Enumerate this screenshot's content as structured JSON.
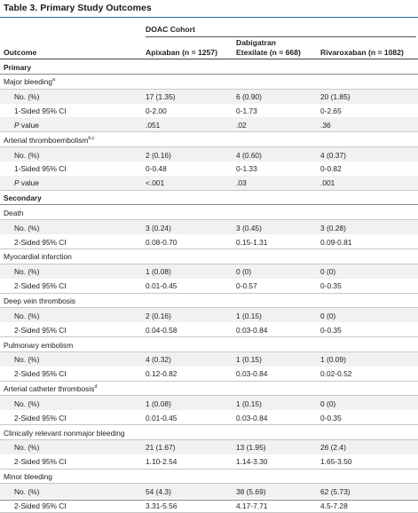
{
  "table": {
    "title": "Table 3. Primary Study Outcomes",
    "group_header": "DOAC Cohort",
    "headers": {
      "outcome": "Outcome",
      "apixaban": "Apixaban (n = 1257)",
      "dabigatran_line1": "Dabigatran",
      "dabigatran_line2": "Etexilate (n = 668)",
      "rivaroxaban": "Rivaroxaban (n = 1082)"
    },
    "rows": [
      {
        "type": "section",
        "label": "Primary"
      },
      {
        "type": "outcome",
        "label": "Major bleeding",
        "sup": "a"
      },
      {
        "type": "stat",
        "label": "No. (%)",
        "apixaban": "17 (1.35)",
        "dabigatran": "6 (0.90)",
        "rivaroxaban": "20 (1.85)"
      },
      {
        "type": "stat",
        "label": "1-Sided 95% CI",
        "apixaban": "0-2.00",
        "dabigatran": "0-1.73",
        "rivaroxaban": "0-2.65"
      },
      {
        "type": "stat",
        "label": "P value",
        "italic_p": true,
        "apixaban": ".051",
        "dabigatran": ".02",
        "rivaroxaban": ".36"
      },
      {
        "type": "outcome",
        "label": "Arterial thromboembolism",
        "sup": "b,c"
      },
      {
        "type": "stat",
        "label": "No. (%)",
        "apixaban": "2 (0.16)",
        "dabigatran": "4 (0.60)",
        "rivaroxaban": "4 (0.37)"
      },
      {
        "type": "stat",
        "label": "1-Sided 95% CI",
        "apixaban": "0-0.48",
        "dabigatran": "0-1.33",
        "rivaroxaban": "0-0.82"
      },
      {
        "type": "stat",
        "label": "P value",
        "italic_p": true,
        "apixaban": "<.001",
        "dabigatran": ".03",
        "rivaroxaban": ".001"
      },
      {
        "type": "section",
        "label": "Secondary"
      },
      {
        "type": "outcome",
        "label": "Death"
      },
      {
        "type": "stat",
        "label": "No. (%)",
        "apixaban": "3 (0.24)",
        "dabigatran": "3 (0.45)",
        "rivaroxaban": "3 (0.28)"
      },
      {
        "type": "stat",
        "label": "2-Sided 95% CI",
        "apixaban": "0.08-0.70",
        "dabigatran": "0.15-1.31",
        "rivaroxaban": "0.09-0.81"
      },
      {
        "type": "outcome",
        "label": "Myocardial infarction"
      },
      {
        "type": "stat",
        "label": "No. (%)",
        "apixaban": "1 (0.08)",
        "dabigatran": "0 (0)",
        "rivaroxaban": "0 (0)"
      },
      {
        "type": "stat",
        "label": "2-Sided 95% CI",
        "apixaban": "0.01-0.45",
        "dabigatran": "0-0.57",
        "rivaroxaban": "0-0.35"
      },
      {
        "type": "outcome",
        "label": "Deep vein thrombosis"
      },
      {
        "type": "stat",
        "label": "No. (%)",
        "apixaban": "2 (0.16)",
        "dabigatran": "1 (0.15)",
        "rivaroxaban": "0 (0)"
      },
      {
        "type": "stat",
        "label": "2-Sided 95% CI",
        "apixaban": "0.04-0.58",
        "dabigatran": "0.03-0.84",
        "rivaroxaban": "0-0.35"
      },
      {
        "type": "outcome",
        "label": "Pulmonary embolism"
      },
      {
        "type": "stat",
        "label": "No. (%)",
        "apixaban": "4 (0.32)",
        "dabigatran": "1 (0.15)",
        "rivaroxaban": "1 (0.09)"
      },
      {
        "type": "stat",
        "label": "2-Sided 95% CI",
        "apixaban": "0.12-0.82",
        "dabigatran": "0.03-0.84",
        "rivaroxaban": "0.02-0.52"
      },
      {
        "type": "outcome",
        "label": "Arterial catheter thrombosis",
        "sup": "d"
      },
      {
        "type": "stat",
        "label": "No. (%)",
        "apixaban": "1 (0.08)",
        "dabigatran": "1 (0.15)",
        "rivaroxaban": "0 (0)"
      },
      {
        "type": "stat",
        "label": "2-Sided 95% CI",
        "apixaban": "0.01-0.45",
        "dabigatran": "0.03-0.84",
        "rivaroxaban": "0-0.35"
      },
      {
        "type": "outcome",
        "label": "Clinically relevant nonmajor bleeding"
      },
      {
        "type": "stat",
        "label": "No. (%)",
        "apixaban": "21 (1.67)",
        "dabigatran": "13 (1.95)",
        "rivaroxaban": "26 (2.4)"
      },
      {
        "type": "stat",
        "label": "2-Sided 95% CI",
        "apixaban": "1.10-2.54",
        "dabigatran": "1.14-3.30",
        "rivaroxaban": "1.65-3.50"
      },
      {
        "type": "outcome",
        "label": "Minor bleeding"
      },
      {
        "type": "stat",
        "label": "No. (%)",
        "apixaban": "54 (4.3)",
        "dabigatran": "38 (5.69)",
        "rivaroxaban": "62 (5.73)"
      },
      {
        "type": "stat",
        "label": "2-Sided 95% CI",
        "apixaban": "3.31-5.56",
        "dabigatran": "4.17-7.71",
        "rivaroxaban": "4.5-7.28"
      }
    ]
  }
}
